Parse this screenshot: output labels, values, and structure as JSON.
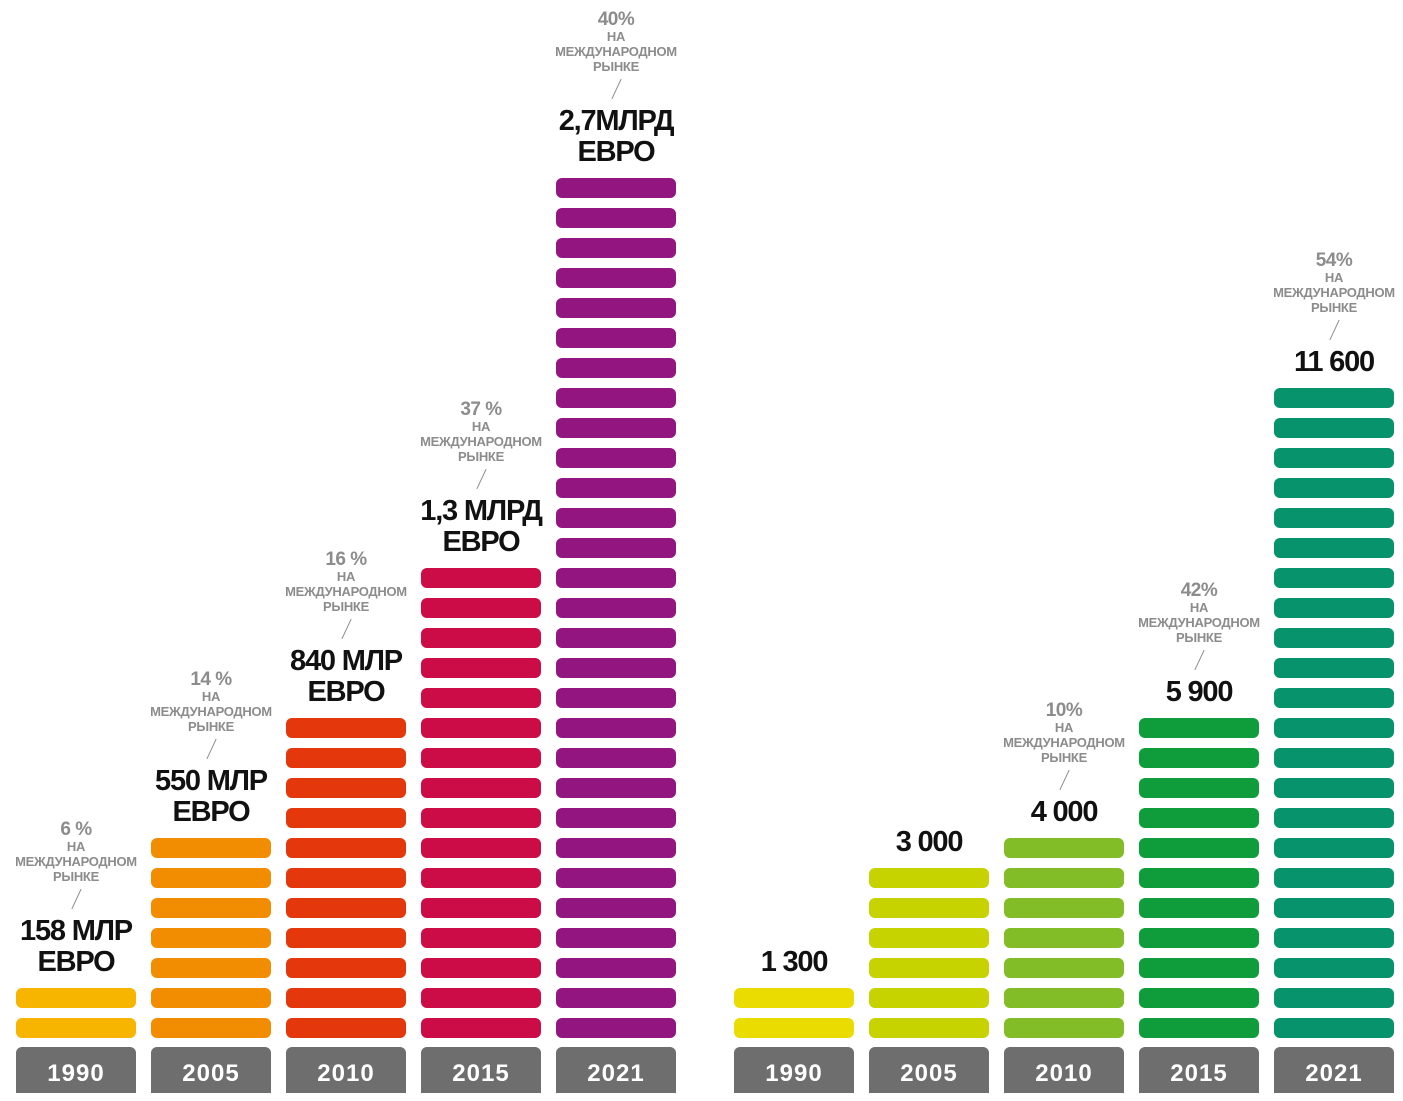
{
  "chart_data": [
    {
      "type": "bar",
      "categories": [
        "1990",
        "2005",
        "2010",
        "2015",
        "2021"
      ],
      "values": [
        2,
        7,
        11,
        16,
        29
      ],
      "value_labels": [
        "158 МЛР ЕВРО",
        "550 МЛР ЕВРО",
        "840 МЛР ЕВРО",
        "1,3 МЛРД ЕВРО",
        "2,7МЛРД ЕВРО"
      ],
      "international_share": [
        "6 %",
        "14 %",
        "16 %",
        "37 %",
        "40%"
      ],
      "share_caption": [
        "НА",
        "МЕЖДУНАРОДНОМ",
        "РЫНКЕ"
      ],
      "colors": [
        "#f7b500",
        "#f28c00",
        "#e4370c",
        "#cc0c46",
        "#93157f"
      ]
    },
    {
      "type": "bar",
      "categories": [
        "1990",
        "2005",
        "2010",
        "2015",
        "2021"
      ],
      "values": [
        2,
        6,
        7,
        11,
        22
      ],
      "value_labels": [
        "1 300",
        "3 000",
        "4 000",
        "5 900",
        "11 600"
      ],
      "international_share": [
        "",
        "",
        "10%",
        "42%",
        "54%"
      ],
      "share_caption": [
        "НА",
        "МЕЖДУНАРОДНОМ",
        "РЫНКЕ"
      ],
      "colors": [
        "#ebdc00",
        "#c6d300",
        "#82bc26",
        "#0f9d3c",
        "#07936c"
      ]
    }
  ]
}
